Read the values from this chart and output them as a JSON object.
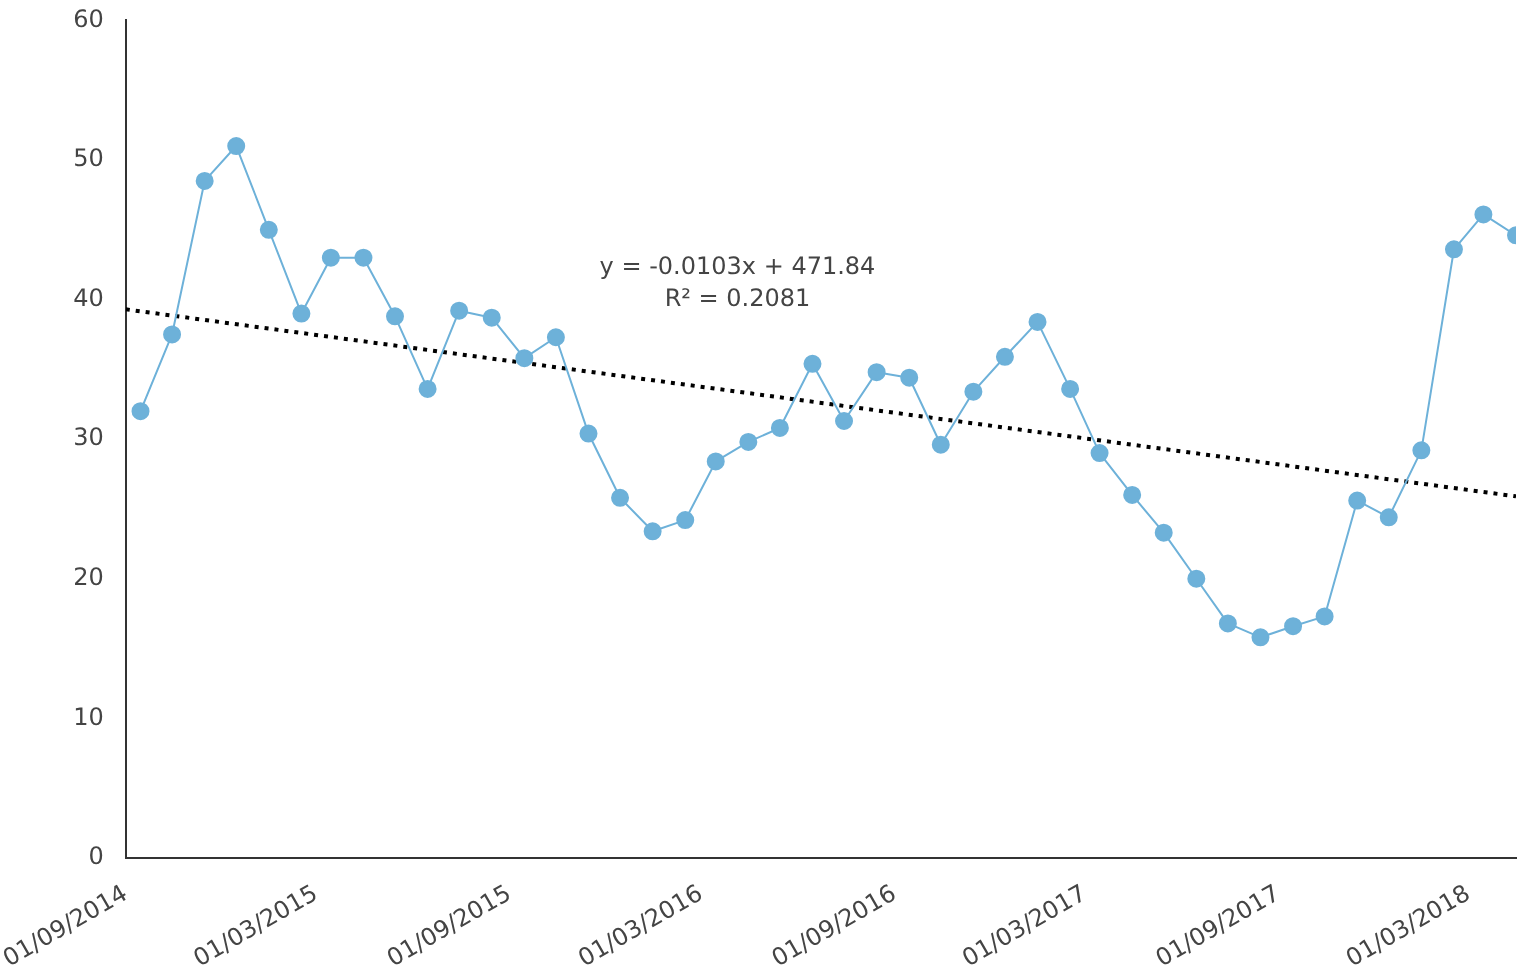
{
  "chart_data": {
    "type": "line",
    "x": [
      "2014-09-15",
      "2014-10-15",
      "2014-11-15",
      "2014-12-15",
      "2015-01-15",
      "2015-02-15",
      "2015-03-15",
      "2015-04-15",
      "2015-05-15",
      "2015-06-15",
      "2015-07-15",
      "2015-08-15",
      "2015-09-15",
      "2015-10-15",
      "2015-11-15",
      "2015-12-15",
      "2016-01-15",
      "2016-02-15",
      "2016-03-15",
      "2016-04-15",
      "2016-05-15",
      "2016-06-15",
      "2016-07-15",
      "2016-08-15",
      "2016-09-15",
      "2016-10-15",
      "2016-11-15",
      "2016-12-15",
      "2017-01-15",
      "2017-02-15",
      "2017-03-15",
      "2017-04-15",
      "2017-05-15",
      "2017-06-15",
      "2017-07-15",
      "2017-08-15",
      "2017-09-15",
      "2017-10-15",
      "2017-11-15",
      "2017-12-15",
      "2018-01-15",
      "2018-02-15",
      "2018-03-15",
      "2018-04-15"
    ],
    "series": [
      {
        "color": "#6db1d9",
        "values": [
          32,
          37.5,
          48.5,
          51,
          45,
          39,
          43,
          43,
          38.8,
          33.6,
          39.2,
          38.7,
          35.8,
          37.3,
          30.4,
          25.8,
          23.4,
          24.2,
          28.4,
          29.8,
          30.8,
          35.4,
          31.3,
          34.8,
          34.4,
          29.6,
          33.4,
          35.9,
          38.4,
          33.6,
          29,
          26,
          23.3,
          20,
          16.8,
          15.8,
          16.6,
          17.3,
          25.6,
          24.4,
          29.2,
          43.6,
          46.1,
          44.6
        ]
      },
      {
        "type": "line",
        "color": "#000000",
        "marker": "none",
        "line_style": "dotted",
        "x": [
          "2014-09-01",
          "2018-04-15"
        ],
        "values": [
          39.3,
          25.9
        ]
      }
    ],
    "xlim": [
      "2014-09-01",
      "2018-04-15"
    ],
    "xticks": [
      {
        "value": "2014-09-01",
        "label": "01/09/2014"
      },
      {
        "value": "2015-03-01",
        "label": "01/03/2015"
      },
      {
        "value": "2015-09-01",
        "label": "01/09/2015"
      },
      {
        "value": "2016-03-01",
        "label": "01/03/2016"
      },
      {
        "value": "2016-09-01",
        "label": "01/09/2016"
      },
      {
        "value": "2017-03-01",
        "label": "01/03/2017"
      },
      {
        "value": "2017-09-01",
        "label": "01/09/2017"
      },
      {
        "value": "2018-03-01",
        "label": "01/03/2018"
      }
    ],
    "ylim": [
      0,
      60
    ],
    "yticks": [
      0,
      10,
      20,
      30,
      40,
      50,
      60
    ],
    "annotations": [
      "y = -0.0103x + 471.84",
      "R² = 0.2081"
    ],
    "grid": false,
    "legend": false,
    "marker": "circle",
    "line_style": "solid"
  }
}
